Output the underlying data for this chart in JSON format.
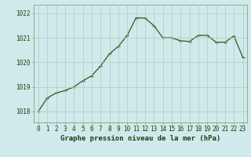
{
  "x": [
    0,
    1,
    2,
    3,
    4,
    5,
    6,
    7,
    8,
    9,
    10,
    11,
    12,
    13,
    14,
    15,
    16,
    17,
    18,
    19,
    20,
    21,
    22,
    23
  ],
  "y": [
    1018.0,
    1018.55,
    1018.75,
    1018.85,
    1019.0,
    1019.25,
    1019.45,
    1019.85,
    1020.35,
    1020.65,
    1021.1,
    1021.82,
    1021.8,
    1021.5,
    1021.0,
    1021.0,
    1020.88,
    1020.85,
    1021.1,
    1021.1,
    1020.82,
    1020.82,
    1021.08,
    1020.2
  ],
  "ylim_min": 1017.55,
  "ylim_max": 1022.35,
  "yticks": [
    1018,
    1019,
    1020,
    1021,
    1022
  ],
  "xticks": [
    0,
    1,
    2,
    3,
    4,
    5,
    6,
    7,
    8,
    9,
    10,
    11,
    12,
    13,
    14,
    15,
    16,
    17,
    18,
    19,
    20,
    21,
    22,
    23
  ],
  "line_color": "#2d5a1b",
  "bg_color": "#ceeaea",
  "grid_color": "#b0c8c8",
  "border_color": "#7aaa7a",
  "xlabel": "Graphe pression niveau de la mer (hPa)",
  "xlabel_color": "#1a4010",
  "tick_color": "#1a4010",
  "marker": "+",
  "linewidth": 0.9,
  "markersize": 3.5,
  "tick_fontsize": 5.5,
  "label_fontsize": 6.5
}
